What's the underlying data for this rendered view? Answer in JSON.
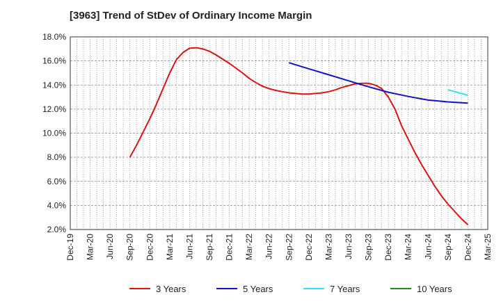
{
  "chart_data": {
    "type": "line",
    "title": "[3963]  Trend of StDev of Ordinary Income Margin",
    "xlabel": "",
    "ylabel": "",
    "x_ticks": [
      "Dec-19",
      "Mar-20",
      "Jun-20",
      "Sep-20",
      "Dec-20",
      "Mar-21",
      "Jun-21",
      "Sep-21",
      "Dec-21",
      "Mar-22",
      "Jun-22",
      "Sep-22",
      "Dec-22",
      "Mar-23",
      "Jun-23",
      "Sep-23",
      "Dec-23",
      "Mar-24",
      "Jun-24",
      "Sep-24",
      "Dec-24",
      "Mar-25"
    ],
    "y_ticks": [
      "2.0%",
      "4.0%",
      "6.0%",
      "8.0%",
      "10.0%",
      "12.0%",
      "14.0%",
      "16.0%",
      "18.0%"
    ],
    "ylim": [
      2.0,
      18.0
    ],
    "grid": true,
    "legend_position": "bottom",
    "series": [
      {
        "name": "3 Years",
        "color": "#dd1111",
        "points": [
          [
            "Sep-20",
            8.0
          ],
          [
            "Oct-20",
            9.0
          ],
          [
            "Nov-20",
            10.1
          ],
          [
            "Dec-20",
            11.2
          ],
          [
            "Jan-21",
            12.4
          ],
          [
            "Feb-21",
            13.7
          ],
          [
            "Mar-21",
            15.0
          ],
          [
            "Apr-21",
            16.1
          ],
          [
            "May-21",
            16.7
          ],
          [
            "Jun-21",
            17.05
          ],
          [
            "Jul-21",
            17.1
          ],
          [
            "Aug-21",
            17.0
          ],
          [
            "Sep-21",
            16.8
          ],
          [
            "Oct-21",
            16.5
          ],
          [
            "Nov-21",
            16.15
          ],
          [
            "Dec-21",
            15.8
          ],
          [
            "Jan-22",
            15.4
          ],
          [
            "Feb-22",
            15.0
          ],
          [
            "Mar-22",
            14.55
          ],
          [
            "Apr-22",
            14.2
          ],
          [
            "May-22",
            13.9
          ],
          [
            "Jun-22",
            13.7
          ],
          [
            "Jul-22",
            13.55
          ],
          [
            "Aug-22",
            13.45
          ],
          [
            "Sep-22",
            13.35
          ],
          [
            "Oct-22",
            13.3
          ],
          [
            "Nov-22",
            13.25
          ],
          [
            "Dec-22",
            13.25
          ],
          [
            "Jan-23",
            13.3
          ],
          [
            "Feb-23",
            13.35
          ],
          [
            "Mar-23",
            13.45
          ],
          [
            "Apr-23",
            13.6
          ],
          [
            "May-23",
            13.8
          ],
          [
            "Jun-23",
            13.95
          ],
          [
            "Jul-23",
            14.1
          ],
          [
            "Aug-23",
            14.15
          ],
          [
            "Sep-23",
            14.15
          ],
          [
            "Oct-23",
            14.0
          ],
          [
            "Nov-23",
            13.7
          ],
          [
            "Dec-23",
            13.0
          ],
          [
            "Jan-24",
            12.0
          ],
          [
            "Feb-24",
            10.6
          ],
          [
            "Mar-24",
            9.5
          ],
          [
            "Apr-24",
            8.4
          ],
          [
            "May-24",
            7.4
          ],
          [
            "Jun-24",
            6.5
          ],
          [
            "Jul-24",
            5.6
          ],
          [
            "Aug-24",
            4.8
          ],
          [
            "Sep-24",
            4.1
          ],
          [
            "Oct-24",
            3.5
          ],
          [
            "Nov-24",
            2.9
          ],
          [
            "Dec-24",
            2.4
          ]
        ]
      },
      {
        "name": "5 Years",
        "color": "#1111cc",
        "points": [
          [
            "Sep-22",
            15.85
          ],
          [
            "Dec-22",
            15.35
          ],
          [
            "Mar-23",
            14.85
          ],
          [
            "Jun-23",
            14.35
          ],
          [
            "Sep-23",
            13.85
          ],
          [
            "Dec-23",
            13.4
          ],
          [
            "Mar-24",
            13.05
          ],
          [
            "Jun-24",
            12.75
          ],
          [
            "Sep-24",
            12.6
          ],
          [
            "Dec-24",
            12.5
          ]
        ]
      },
      {
        "name": "7 Years",
        "color": "#33e0ee",
        "points": [
          [
            "Sep-24",
            13.6
          ],
          [
            "Dec-24",
            13.15
          ]
        ]
      },
      {
        "name": "10 Years",
        "color": "#1e8c1e",
        "points": []
      }
    ]
  }
}
